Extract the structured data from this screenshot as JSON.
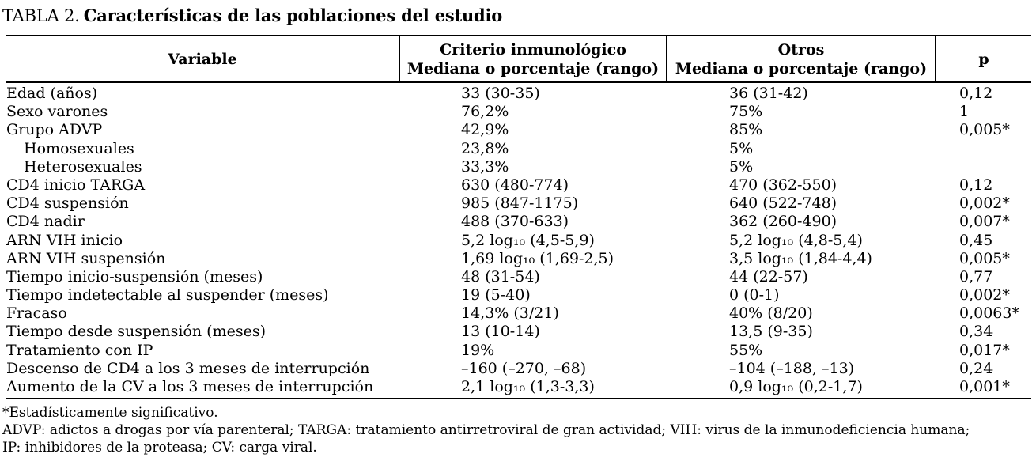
{
  "title": {
    "label": "TABLA 2.",
    "caption": "Características de las poblaciones del estudio"
  },
  "table": {
    "header": {
      "variable": "Variable",
      "criterio_line1": "Criterio inmunológico",
      "criterio_line2": "Mediana o porcentaje (rango)",
      "otros_line1": "Otros",
      "otros_line2": "Mediana o porcentaje (rango)",
      "p": "p"
    },
    "rows": [
      {
        "variable": "Edad (años)",
        "indent": false,
        "criterio": "33 (30-35)",
        "otros": "36 (31-42)",
        "p": "0,12"
      },
      {
        "variable": "Sexo varones",
        "indent": false,
        "criterio": "76,2%",
        "otros": "75%",
        "p": "1"
      },
      {
        "variable": "Grupo ADVP",
        "indent": false,
        "criterio": "42,9%",
        "otros": "85%",
        "p": "0,005*"
      },
      {
        "variable": "Homosexuales",
        "indent": true,
        "criterio": "23,8%",
        "otros": "5%",
        "p": ""
      },
      {
        "variable": "Heterosexuales",
        "indent": true,
        "criterio": "33,3%",
        "otros": "5%",
        "p": ""
      },
      {
        "variable": "CD4 inicio TARGA",
        "indent": false,
        "criterio": "630 (480-774)",
        "otros": "470 (362-550)",
        "p": "0,12"
      },
      {
        "variable": "CD4 suspensión",
        "indent": false,
        "criterio": "985 (847-1175)",
        "otros": "640 (522-748)",
        "p": "0,002*"
      },
      {
        "variable": "CD4 nadir",
        "indent": false,
        "criterio": "488 (370-633)",
        "otros": "362 (260-490)",
        "p": "0,007*"
      },
      {
        "variable": "ARN VIH inicio",
        "indent": false,
        "criterio": "5,2 log₁₀ (4,5-5,9)",
        "otros": "5,2 log₁₀ (4,8-5,4)",
        "p": "0,45"
      },
      {
        "variable": "ARN VIH suspensión",
        "indent": false,
        "criterio": "1,69 log₁₀ (1,69-2,5)",
        "otros": "3,5 log₁₀ (1,84-4,4)",
        "p": "0,005*"
      },
      {
        "variable": "Tiempo inicio-suspensión (meses)",
        "indent": false,
        "criterio": "48 (31-54)",
        "otros": "44 (22-57)",
        "p": "0,77"
      },
      {
        "variable": "Tiempo indetectable al suspender (meses)",
        "indent": false,
        "criterio": "19 (5-40)",
        "otros": "0 (0-1)",
        "p": "0,002*"
      },
      {
        "variable": "Fracaso",
        "indent": false,
        "criterio": "14,3% (3/21)",
        "otros": "40% (8/20)",
        "p": "0,0063*"
      },
      {
        "variable": "Tiempo desde suspensión (meses)",
        "indent": false,
        "criterio": "13 (10-14)",
        "otros": "13,5 (9-35)",
        "p": "0,34"
      },
      {
        "variable": "Tratamiento con IP",
        "indent": false,
        "criterio": "19%",
        "otros": "55%",
        "p": "0,017*"
      },
      {
        "variable": "Descenso de CD4 a los 3 meses de interrupción",
        "indent": false,
        "criterio": "–160 (–270, –68)",
        "otros": "–104 (–188, –13)",
        "p": "0,24"
      },
      {
        "variable": "Aumento de la CV a los 3 meses de interrupción",
        "indent": false,
        "criterio": "2,1 log₁₀ (1,3-3,3)",
        "otros": "0,9 log₁₀ (0,2-1,7)",
        "p": "0,001*"
      }
    ]
  },
  "footnotes": [
    "*Estadísticamente significativo.",
    "ADVP: adictos a drogas por vía parenteral; TARGA: tratamiento antirretroviral de gran actividad; VIH: virus de la inmunodeficiencia humana;",
    "IP: inhibidores de la proteasa; CV: carga viral."
  ]
}
